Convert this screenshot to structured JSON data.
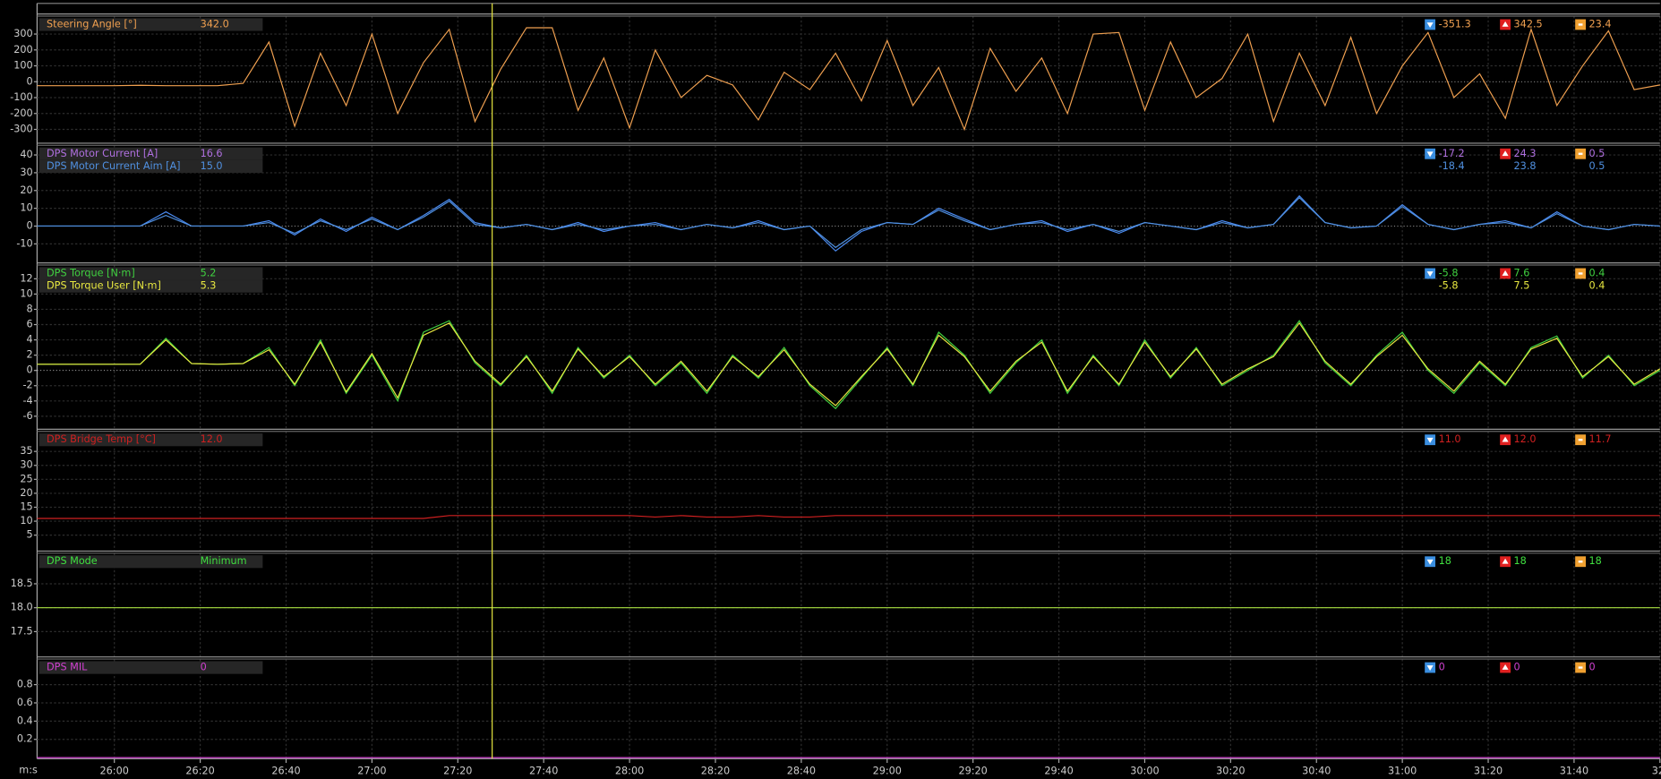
{
  "x_axis": {
    "label": "m:s",
    "xlim": [
      1542,
      1920
    ],
    "xticks": [
      {
        "value": 1560,
        "label": "26:00"
      },
      {
        "value": 1580,
        "label": "26:20"
      },
      {
        "value": 1600,
        "label": "26:40"
      },
      {
        "value": 1620,
        "label": "27:00"
      },
      {
        "value": 1640,
        "label": "27:20"
      },
      {
        "value": 1660,
        "label": "27:40"
      },
      {
        "value": 1680,
        "label": "28:00"
      },
      {
        "value": 1700,
        "label": "28:20"
      },
      {
        "value": 1720,
        "label": "28:40"
      },
      {
        "value": 1740,
        "label": "29:00"
      },
      {
        "value": 1760,
        "label": "29:20"
      },
      {
        "value": 1780,
        "label": "29:40"
      },
      {
        "value": 1800,
        "label": "30:00"
      },
      {
        "value": 1820,
        "label": "30:20"
      },
      {
        "value": 1840,
        "label": "30:40"
      },
      {
        "value": 1860,
        "label": "31:00"
      },
      {
        "value": 1880,
        "label": "31:20"
      },
      {
        "value": 1900,
        "label": "31:40"
      },
      {
        "value": 1920,
        "label": "32:"
      }
    ]
  },
  "cursor_x": 1648,
  "chart_data": [
    {
      "type": "line",
      "ylim": [
        -387,
        413
      ],
      "yticks": [
        -300,
        -200,
        -100,
        0,
        100,
        200,
        300
      ],
      "x": [
        1542,
        1548,
        1554,
        1560,
        1566,
        1572,
        1578,
        1584,
        1590,
        1596,
        1602,
        1608,
        1614,
        1620,
        1626,
        1632,
        1638,
        1644,
        1650,
        1656,
        1662,
        1668,
        1674,
        1680,
        1686,
        1692,
        1698,
        1704,
        1710,
        1716,
        1722,
        1728,
        1734,
        1740,
        1746,
        1752,
        1758,
        1764,
        1770,
        1776,
        1782,
        1788,
        1794,
        1800,
        1806,
        1812,
        1818,
        1824,
        1830,
        1836,
        1842,
        1848,
        1854,
        1860,
        1866,
        1872,
        1878,
        1884,
        1890,
        1896,
        1902,
        1908,
        1914,
        1920
      ],
      "series": [
        {
          "name": "Steering Angle [°]",
          "color": "#f0a050",
          "values": [
            -25,
            -25,
            -25,
            -25,
            -22,
            -25,
            -25,
            -25,
            -10,
            250,
            -280,
            180,
            -150,
            300,
            -200,
            120,
            330,
            -250,
            80,
            340,
            340,
            -180,
            150,
            -290,
            200,
            -100,
            40,
            -20,
            -240,
            60,
            -50,
            180,
            -120,
            260,
            -150,
            90,
            -300,
            210,
            -60,
            150,
            -200,
            300,
            310,
            -180,
            250,
            -100,
            20,
            300,
            -250,
            180,
            -150,
            280,
            -200,
            100,
            310,
            -100,
            50,
            -230,
            330,
            -150,
            100,
            320,
            -50,
            -20
          ],
          "readout": {
            "cursor": "342.0",
            "min": "-351.3",
            "max": "342.5",
            "avg": "23.4"
          }
        }
      ]
    },
    {
      "type": "line",
      "ylim": [
        -20.7,
        45.4
      ],
      "yticks": [
        -10,
        0,
        10,
        20,
        30,
        40
      ],
      "x": [
        1542,
        1548,
        1554,
        1560,
        1566,
        1572,
        1578,
        1584,
        1590,
        1596,
        1602,
        1608,
        1614,
        1620,
        1626,
        1632,
        1638,
        1644,
        1650,
        1656,
        1662,
        1668,
        1674,
        1680,
        1686,
        1692,
        1698,
        1704,
        1710,
        1716,
        1722,
        1728,
        1734,
        1740,
        1746,
        1752,
        1758,
        1764,
        1770,
        1776,
        1782,
        1788,
        1794,
        1800,
        1806,
        1812,
        1818,
        1824,
        1830,
        1836,
        1842,
        1848,
        1854,
        1860,
        1866,
        1872,
        1878,
        1884,
        1890,
        1896,
        1902,
        1908,
        1914,
        1920
      ],
      "series": [
        {
          "name": "DPS Motor Current [A]",
          "color": "#b070e0",
          "line_color": "#4a8af0",
          "values": [
            0,
            0,
            0,
            0,
            0,
            8,
            0,
            0,
            0,
            3,
            -5,
            4,
            -3,
            5,
            -2,
            6,
            15,
            2,
            -1,
            1,
            -2,
            2,
            -3,
            0,
            2,
            -2,
            1,
            -1,
            3,
            -2,
            0,
            -14,
            -3,
            2,
            1,
            10,
            4,
            -2,
            1,
            3,
            -3,
            1,
            -4,
            2,
            0,
            -2,
            3,
            -1,
            1,
            17,
            2,
            -1,
            0,
            12,
            1,
            -2,
            1,
            3,
            -1,
            8,
            0,
            -2,
            1,
            0
          ],
          "readout": {
            "cursor": "16.6",
            "min": "-17.2",
            "max": "24.3",
            "avg": "0.5"
          }
        },
        {
          "name": "DPS Motor Current Aim [A]",
          "color": "#5090e0",
          "values": [
            0,
            0,
            0,
            0,
            0,
            6,
            0,
            0,
            0,
            2,
            -4,
            3,
            -2,
            4,
            -2,
            5,
            14,
            1,
            -1,
            1,
            -2,
            1,
            -2,
            0,
            1,
            -2,
            1,
            -1,
            2,
            -2,
            0,
            -12,
            -2,
            2,
            1,
            9,
            3,
            -2,
            1,
            2,
            -2,
            1,
            -3,
            2,
            0,
            -2,
            2,
            -1,
            1,
            16,
            2,
            -1,
            0,
            11,
            1,
            -2,
            1,
            2,
            -1,
            7,
            0,
            -2,
            1,
            0
          ],
          "readout": {
            "cursor": "15.0",
            "min": "-18.4",
            "max": "23.8",
            "avg": "0.5"
          }
        }
      ]
    },
    {
      "type": "line",
      "ylim": [
        -7.7,
        13.8
      ],
      "yticks": [
        -6,
        -4,
        -2,
        0,
        2,
        4,
        6,
        8,
        10,
        12
      ],
      "x": [
        1542,
        1548,
        1554,
        1560,
        1566,
        1572,
        1578,
        1584,
        1590,
        1596,
        1602,
        1608,
        1614,
        1620,
        1626,
        1632,
        1638,
        1644,
        1650,
        1656,
        1662,
        1668,
        1674,
        1680,
        1686,
        1692,
        1698,
        1704,
        1710,
        1716,
        1722,
        1728,
        1734,
        1740,
        1746,
        1752,
        1758,
        1764,
        1770,
        1776,
        1782,
        1788,
        1794,
        1800,
        1806,
        1812,
        1818,
        1824,
        1830,
        1836,
        1842,
        1848,
        1854,
        1860,
        1866,
        1872,
        1878,
        1884,
        1890,
        1896,
        1902,
        1908,
        1914,
        1920
      ],
      "series": [
        {
          "name": "DPS Torque [N·m]",
          "color": "#40d040",
          "values": [
            0.8,
            0.8,
            0.8,
            0.8,
            0.8,
            4.2,
            0.9,
            0.8,
            0.9,
            3,
            -2,
            4,
            -3,
            2,
            -4,
            5,
            6.5,
            1,
            -2,
            2,
            -3,
            3,
            -1,
            2,
            -2,
            1,
            -3,
            2,
            -1,
            3,
            -2,
            -5,
            -1,
            3,
            -2,
            5,
            2,
            -3,
            1,
            4,
            -3,
            2,
            -2,
            4,
            -1,
            3,
            -2,
            0,
            2,
            6.5,
            1,
            -2,
            2,
            5,
            0,
            -3,
            1,
            -2,
            3,
            4.5,
            -1,
            2,
            -2,
            0
          ],
          "readout": {
            "cursor": "5.2",
            "min": "-5.8",
            "max": "7.6",
            "avg": "0.4"
          }
        },
        {
          "name": "DPS Torque User [N·m]",
          "color": "#e8e840",
          "values": [
            0.8,
            0.8,
            0.8,
            0.8,
            0.8,
            4,
            0.9,
            0.8,
            0.9,
            2.7,
            -1.8,
            3.7,
            -2.8,
            2.2,
            -3.6,
            4.6,
            6.2,
            1.2,
            -1.8,
            1.8,
            -2.7,
            2.8,
            -0.8,
            1.8,
            -1.8,
            1.2,
            -2.7,
            1.8,
            -0.8,
            2.7,
            -1.8,
            -4.6,
            -0.8,
            2.8,
            -1.8,
            4.6,
            1.8,
            -2.7,
            1.2,
            3.7,
            -2.7,
            1.8,
            -1.8,
            3.7,
            -0.8,
            2.8,
            -1.8,
            0.2,
            1.8,
            6.2,
            1.2,
            -1.8,
            1.8,
            4.6,
            0.2,
            -2.7,
            1.2,
            -1.8,
            2.8,
            4.2,
            -0.8,
            1.8,
            -1.8,
            0.2
          ],
          "readout": {
            "cursor": "5.3",
            "min": "-5.8",
            "max": "7.5",
            "avg": "0.4"
          }
        }
      ]
    },
    {
      "type": "line",
      "ylim": [
        -0.7,
        42.2
      ],
      "yticks": [
        5,
        10,
        15,
        20,
        25,
        30,
        35
      ],
      "x": [
        1542,
        1548,
        1554,
        1560,
        1566,
        1572,
        1578,
        1584,
        1590,
        1596,
        1602,
        1608,
        1614,
        1620,
        1626,
        1632,
        1638,
        1644,
        1650,
        1656,
        1662,
        1668,
        1674,
        1680,
        1686,
        1692,
        1698,
        1704,
        1710,
        1716,
        1722,
        1728,
        1734,
        1740,
        1746,
        1752,
        1758,
        1764,
        1770,
        1776,
        1782,
        1788,
        1794,
        1800,
        1806,
        1812,
        1818,
        1824,
        1830,
        1836,
        1842,
        1848,
        1854,
        1860,
        1866,
        1872,
        1878,
        1884,
        1890,
        1896,
        1902,
        1908,
        1914,
        1920
      ],
      "series": [
        {
          "name": "DPS Bridge Temp [°C]",
          "color": "#d02020",
          "values": [
            11,
            11,
            11,
            11,
            11,
            11,
            11,
            11,
            11,
            11,
            11,
            11,
            11,
            11,
            11,
            11,
            12,
            12,
            12,
            12,
            12,
            12,
            12,
            12,
            11.5,
            12,
            11.5,
            11.5,
            12,
            11.5,
            11.5,
            12,
            12,
            12,
            12,
            12,
            12,
            12,
            12,
            12,
            12,
            12,
            12,
            12,
            12,
            12,
            12,
            12,
            12,
            12,
            12,
            12,
            12,
            12,
            12,
            12,
            12,
            12,
            12,
            12,
            12,
            12,
            12,
            12
          ],
          "readout": {
            "cursor": "12.0",
            "min": "11.0",
            "max": "12.0",
            "avg": "11.7"
          }
        }
      ]
    },
    {
      "type": "line",
      "ylim": [
        16.97,
        19.14
      ],
      "yticks": [
        17.5,
        {
          "value": 18,
          "label": "18.0"
        },
        18.5
      ],
      "x": [
        1542,
        1920
      ],
      "series": [
        {
          "name": "DPS Mode",
          "color": "#40e040",
          "line_color": "#a8e040",
          "values": [
            18,
            18
          ],
          "readout": {
            "cursor": "Minimum",
            "min": "18",
            "max": "18",
            "avg": "18"
          }
        }
      ]
    },
    {
      "type": "line",
      "ylim": [
        0,
        1.08
      ],
      "yticks": [
        0.2,
        0.4,
        0.6,
        0.8
      ],
      "x": [
        1542,
        1920
      ],
      "series": [
        {
          "name": "DPS MIL",
          "color": "#d040d0",
          "values": [
            0,
            0
          ],
          "readout": {
            "cursor": "0",
            "min": "0",
            "max": "0",
            "avg": "0"
          }
        }
      ]
    }
  ]
}
